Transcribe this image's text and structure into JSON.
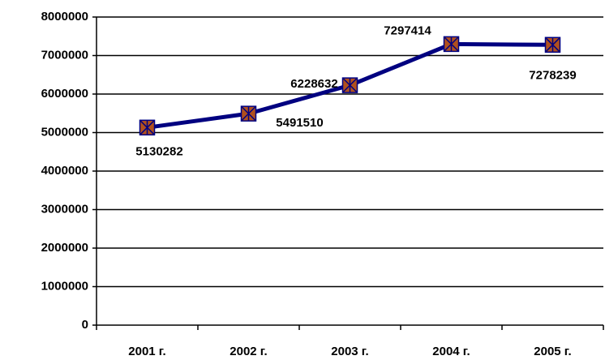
{
  "chart_data": {
    "type": "line",
    "categories": [
      "2001 г.",
      "2002 г.",
      "2003 г.",
      "2004 г.",
      "2005 г."
    ],
    "series": [
      {
        "color": "#000080",
        "values": [
          5130282,
          5491510,
          6228632,
          7297414,
          7278239
        ]
      }
    ],
    "marker_color": "#b0501e",
    "ylim": [
      0,
      8000000
    ],
    "yticks": [
      0,
      1000000,
      2000000,
      3000000,
      4000000,
      5000000,
      6000000,
      7000000,
      8000000
    ],
    "grid": true
  }
}
